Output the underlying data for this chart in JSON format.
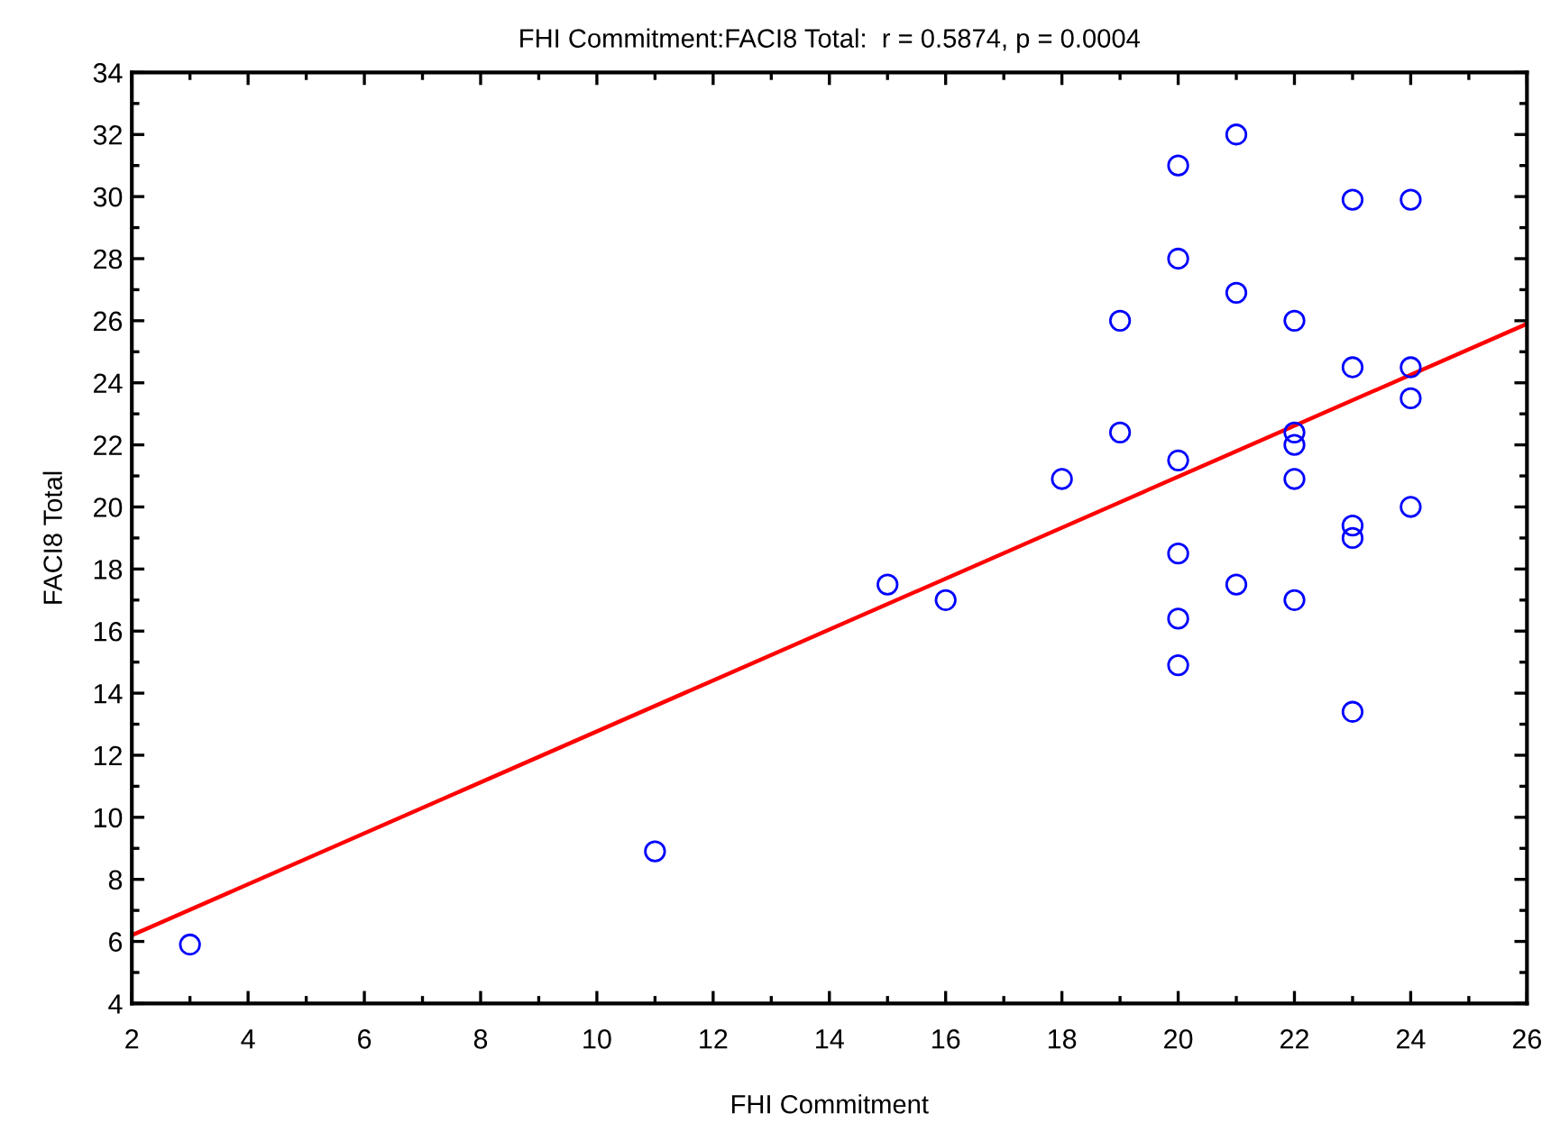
{
  "chart_data": {
    "type": "scatter",
    "title": "FHI Commitment:FACI8 Total:  r = 0.5874, p = 0.0004",
    "xlabel": "FHI Commitment",
    "ylabel": "FACI8 Total",
    "xlim": [
      2,
      26
    ],
    "xticks": [
      2,
      4,
      6,
      8,
      10,
      12,
      14,
      16,
      18,
      20,
      22,
      24,
      26
    ],
    "ylim": [
      4,
      34
    ],
    "yticks": [
      4,
      6,
      8,
      10,
      12,
      14,
      16,
      18,
      20,
      22,
      24,
      26,
      28,
      30,
      32,
      34
    ],
    "grid": false,
    "legend": false,
    "series": [
      {
        "marker": "circle",
        "color": "#0000ff",
        "x": [
          3,
          11,
          15,
          16,
          18,
          19,
          19,
          20,
          20,
          20,
          20,
          20,
          20,
          21,
          21,
          21,
          22,
          22,
          22,
          22,
          22,
          23,
          23,
          23,
          23,
          23,
          24,
          24,
          24,
          24
        ],
        "values": [
          5.9,
          8.9,
          17.5,
          17.0,
          20.9,
          26.0,
          22.4,
          31.0,
          28.0,
          21.5,
          18.5,
          16.4,
          14.9,
          32.0,
          26.9,
          17.5,
          26.0,
          22.4,
          22.0,
          20.9,
          17.0,
          29.9,
          24.5,
          19.4,
          19.0,
          13.4,
          29.9,
          24.5,
          23.5,
          20.0
        ]
      },
      {
        "type": "line",
        "marker": "none",
        "line_style": "solid",
        "color": "#ff0000",
        "x": [
          2,
          26
        ],
        "values": [
          6.2,
          25.9
        ]
      }
    ]
  }
}
